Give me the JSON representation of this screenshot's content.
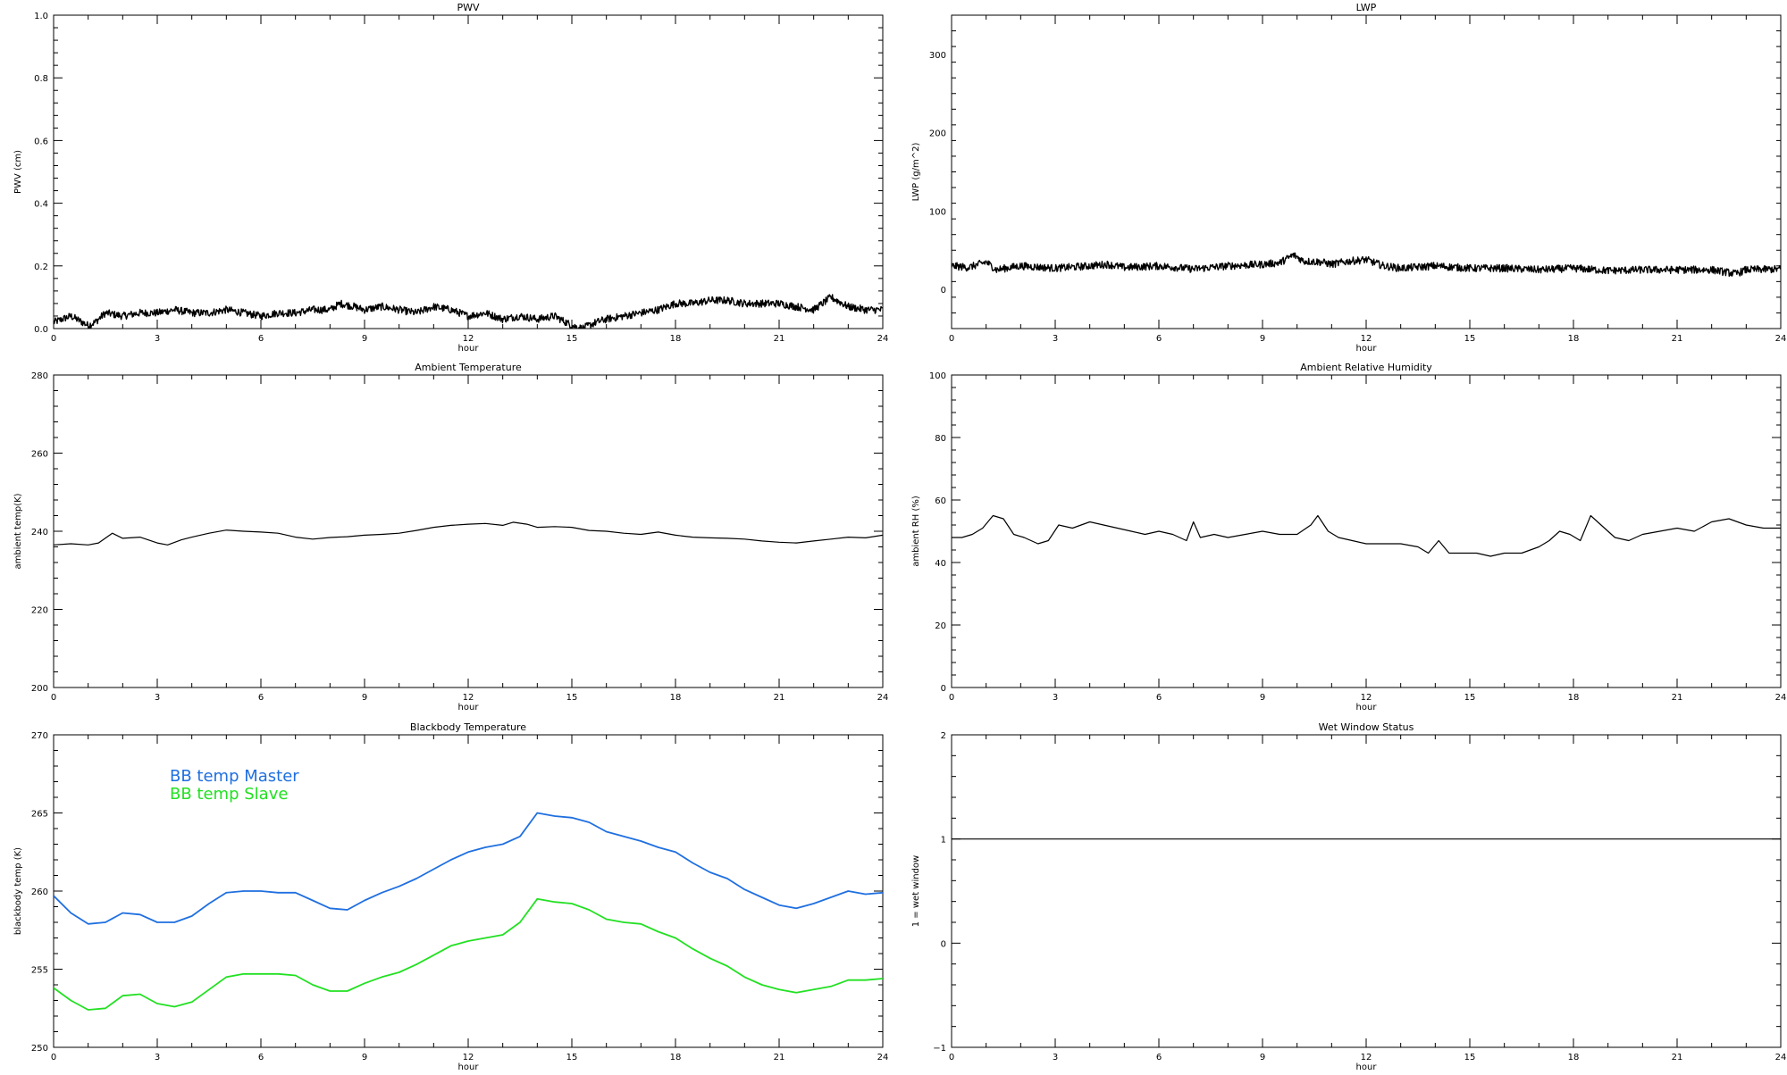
{
  "chart_data": [
    {
      "type": "line",
      "title": "PWV",
      "xlabel": "hour",
      "ylabel": "PWV (cm)",
      "xlim": [
        0,
        24
      ],
      "ylim": [
        0.0,
        1.0
      ],
      "x_ticks": [
        "0",
        "3",
        "6",
        "9",
        "12",
        "15",
        "18",
        "21",
        "24"
      ],
      "y_ticks": [
        "0.0",
        "0.2",
        "0.4",
        "0.6",
        "0.8",
        "1.0"
      ],
      "y_tick_values": [
        0,
        0.2,
        0.4,
        0.6,
        0.8,
        1.0
      ],
      "grid": false,
      "noisy": true,
      "series": [
        {
          "color": "#000000",
          "x": [
            0,
            0.5,
            1,
            1.2,
            1.5,
            2,
            2.5,
            3,
            3.5,
            4,
            4.5,
            5,
            5.5,
            6,
            6.5,
            7,
            7.5,
            8,
            8.3,
            8.7,
            9,
            9.5,
            10,
            10.5,
            11,
            11.5,
            12,
            12.5,
            13,
            13.5,
            14,
            14.5,
            15,
            15.3,
            15.7,
            16,
            16.5,
            17,
            17.5,
            18,
            18.5,
            19,
            19.5,
            20,
            20.5,
            21,
            21.5,
            22,
            22.5,
            23,
            23.5,
            24
          ],
          "y": [
            0.02,
            0.04,
            0.01,
            0.02,
            0.05,
            0.04,
            0.05,
            0.05,
            0.06,
            0.05,
            0.05,
            0.06,
            0.05,
            0.04,
            0.05,
            0.05,
            0.06,
            0.06,
            0.08,
            0.07,
            0.06,
            0.07,
            0.06,
            0.05,
            0.07,
            0.06,
            0.04,
            0.05,
            0.03,
            0.04,
            0.03,
            0.04,
            0.01,
            0.0,
            0.02,
            0.03,
            0.04,
            0.05,
            0.06,
            0.08,
            0.08,
            0.09,
            0.09,
            0.08,
            0.08,
            0.08,
            0.07,
            0.06,
            0.1,
            0.07,
            0.06,
            0.06
          ]
        }
      ]
    },
    {
      "type": "line",
      "title": "LWP",
      "xlabel": "hour",
      "ylabel": "LWP (g/m^2)",
      "xlim": [
        0,
        24
      ],
      "ylim": [
        -50,
        350
      ],
      "x_ticks": [
        "0",
        "3",
        "6",
        "9",
        "12",
        "15",
        "18",
        "21",
        "24"
      ],
      "y_ticks": [
        "0",
        "100",
        "200",
        "300"
      ],
      "y_tick_values": [
        0,
        100,
        200,
        300
      ],
      "grid": false,
      "noisy": true,
      "series": [
        {
          "color": "#000000",
          "x": [
            0,
            0.5,
            1,
            1.3,
            1.7,
            2,
            3,
            4,
            4.5,
            5,
            6,
            7,
            8,
            9,
            9.5,
            9.9,
            10.2,
            10.7,
            11,
            11.5,
            12,
            12.5,
            13,
            14,
            15,
            16,
            17,
            18,
            19,
            20,
            21,
            22,
            22.7,
            23,
            24
          ],
          "y": [
            30,
            28,
            35,
            25,
            28,
            30,
            27,
            30,
            32,
            28,
            30,
            26,
            30,
            32,
            34,
            44,
            36,
            35,
            32,
            36,
            38,
            30,
            27,
            30,
            27,
            27,
            25,
            27,
            24,
            25,
            25,
            25,
            20,
            25,
            26
          ]
        }
      ]
    },
    {
      "type": "line",
      "title": "Ambient Temperature",
      "xlabel": "hour",
      "ylabel": "ambient temp(K)",
      "xlim": [
        0,
        24
      ],
      "ylim": [
        200,
        280
      ],
      "x_ticks": [
        "0",
        "3",
        "6",
        "9",
        "12",
        "15",
        "18",
        "21",
        "24"
      ],
      "y_ticks": [
        "200",
        "220",
        "240",
        "260",
        "280"
      ],
      "y_tick_values": [
        200,
        220,
        240,
        260,
        280
      ],
      "grid": false,
      "noisy": false,
      "series": [
        {
          "color": "#000000",
          "x": [
            0,
            0.5,
            1,
            1.3,
            1.7,
            2,
            2.5,
            3,
            3.3,
            3.7,
            4,
            4.5,
            5,
            5.5,
            6,
            6.5,
            7,
            7.5,
            8,
            8.5,
            9,
            9.5,
            10,
            10.5,
            11,
            11.5,
            12,
            12.5,
            13,
            13.3,
            13.7,
            14,
            14.5,
            15,
            15.5,
            16,
            16.5,
            17,
            17.5,
            18,
            18.5,
            19,
            19.5,
            20,
            20.5,
            21,
            21.5,
            22,
            22.5,
            23,
            23.5,
            24
          ],
          "y": [
            236.5,
            236.8,
            236.5,
            237,
            239.5,
            238.2,
            238.5,
            237,
            236.5,
            237.8,
            238.5,
            239.5,
            240.3,
            240,
            239.8,
            239.5,
            238.5,
            238,
            238.4,
            238.6,
            239,
            239.2,
            239.5,
            240.2,
            241,
            241.5,
            241.8,
            242,
            241.5,
            242.3,
            241.8,
            241,
            241.2,
            241,
            240.2,
            240,
            239.5,
            239.2,
            239.8,
            239,
            238.5,
            238.3,
            238.2,
            238,
            237.5,
            237.2,
            237,
            237.5,
            238,
            238.5,
            238.3,
            239
          ]
        }
      ]
    },
    {
      "type": "line",
      "title": "Ambient Relative Humidity",
      "xlabel": "hour",
      "ylabel": "ambient RH (%)",
      "xlim": [
        0,
        24
      ],
      "ylim": [
        0,
        100
      ],
      "x_ticks": [
        "0",
        "3",
        "6",
        "9",
        "12",
        "15",
        "18",
        "21",
        "24"
      ],
      "y_ticks": [
        "0",
        "20",
        "40",
        "60",
        "80",
        "100"
      ],
      "y_tick_values": [
        0,
        20,
        40,
        60,
        80,
        100
      ],
      "grid": false,
      "noisy": false,
      "series": [
        {
          "color": "#000000",
          "x": [
            0,
            0.3,
            0.6,
            0.9,
            1.2,
            1.5,
            1.8,
            2.1,
            2.5,
            2.8,
            3.1,
            3.5,
            4,
            4.4,
            4.8,
            5.2,
            5.6,
            6,
            6.4,
            6.8,
            7,
            7.2,
            7.6,
            8,
            8.5,
            9,
            9.5,
            10,
            10.4,
            10.6,
            10.9,
            11.2,
            11.6,
            12,
            12.5,
            13,
            13.5,
            13.8,
            14.1,
            14.4,
            14.8,
            15.2,
            15.6,
            16,
            16.5,
            17,
            17.3,
            17.6,
            17.9,
            18.2,
            18.5,
            18.8,
            19.2,
            19.6,
            20,
            20.5,
            21,
            21.5,
            22,
            22.5,
            23,
            23.5,
            24
          ],
          "y": [
            48,
            48,
            49,
            51,
            55,
            54,
            49,
            48,
            46,
            47,
            52,
            51,
            53,
            52,
            51,
            50,
            49,
            50,
            49,
            47,
            53,
            48,
            49,
            48,
            49,
            50,
            49,
            49,
            52,
            55,
            50,
            48,
            47,
            46,
            46,
            46,
            45,
            43,
            47,
            43,
            43,
            43,
            42,
            43,
            43,
            45,
            47,
            50,
            49,
            47,
            55,
            52,
            48,
            47,
            49,
            50,
            51,
            50,
            53,
            54,
            52,
            51,
            51
          ]
        }
      ]
    },
    {
      "type": "line",
      "title": "Blackbody Temperature",
      "xlabel": "hour",
      "ylabel": "blackbody temp (K)",
      "xlim": [
        0,
        24
      ],
      "ylim": [
        250,
        270
      ],
      "x_ticks": [
        "0",
        "3",
        "6",
        "9",
        "12",
        "15",
        "18",
        "21",
        "24"
      ],
      "y_ticks": [
        "250",
        "255",
        "260",
        "265",
        "270"
      ],
      "y_tick_values": [
        250,
        255,
        260,
        265,
        270
      ],
      "grid": false,
      "noisy": false,
      "legend_position": "top-left",
      "series": [
        {
          "name": "BB temp Master",
          "color": "#1f6fe0",
          "x": [
            0,
            0.5,
            1,
            1.5,
            2,
            2.5,
            3,
            3.5,
            4,
            4.5,
            5,
            5.5,
            6,
            6.5,
            7,
            7.5,
            8,
            8.5,
            9,
            9.5,
            10,
            10.5,
            11,
            11.5,
            12,
            12.5,
            13,
            13.5,
            14,
            14.5,
            15,
            15.5,
            16,
            16.5,
            17,
            17.5,
            18,
            18.5,
            19,
            19.5,
            20,
            20.5,
            21,
            21.5,
            22,
            22.5,
            23,
            23.5,
            24
          ],
          "y": [
            259.7,
            258.6,
            257.9,
            258,
            258.6,
            258.5,
            258,
            258,
            258.4,
            259.2,
            259.9,
            260,
            260,
            259.9,
            259.9,
            259.4,
            258.9,
            258.8,
            259.4,
            259.9,
            260.3,
            260.8,
            261.4,
            262,
            262.5,
            262.8,
            263,
            263.5,
            265,
            264.8,
            264.7,
            264.4,
            263.8,
            263.5,
            263.2,
            262.8,
            262.5,
            261.8,
            261.2,
            260.8,
            260.1,
            259.6,
            259.1,
            258.9,
            259.2,
            259.6,
            260,
            259.8,
            259.9
          ]
        },
        {
          "name": "BB temp Slave",
          "color": "#22e022",
          "x": [
            0,
            0.5,
            1,
            1.5,
            2,
            2.5,
            3,
            3.5,
            4,
            4.5,
            5,
            5.5,
            6,
            6.5,
            7,
            7.5,
            8,
            8.5,
            9,
            9.5,
            10,
            10.5,
            11,
            11.5,
            12,
            12.5,
            13,
            13.5,
            14,
            14.5,
            15,
            15.5,
            16,
            16.5,
            17,
            17.5,
            18,
            18.5,
            19,
            19.5,
            20,
            20.5,
            21,
            21.5,
            22,
            22.5,
            23,
            23.5,
            24
          ],
          "y": [
            253.8,
            253,
            252.4,
            252.5,
            253.3,
            253.4,
            252.8,
            252.6,
            252.9,
            253.7,
            254.5,
            254.7,
            254.7,
            254.7,
            254.6,
            254,
            253.6,
            253.6,
            254.1,
            254.5,
            254.8,
            255.3,
            255.9,
            256.5,
            256.8,
            257,
            257.2,
            258,
            259.5,
            259.3,
            259.2,
            258.8,
            258.2,
            258,
            257.9,
            257.4,
            257,
            256.3,
            255.7,
            255.2,
            254.5,
            254,
            253.7,
            253.5,
            253.7,
            253.9,
            254.3,
            254.3,
            254.4
          ]
        }
      ]
    },
    {
      "type": "line",
      "title": "Wet Window Status",
      "xlabel": "hour",
      "ylabel": "1 = wet window",
      "xlim": [
        0,
        24
      ],
      "ylim": [
        -1,
        2
      ],
      "x_ticks": [
        "0",
        "3",
        "6",
        "9",
        "12",
        "15",
        "18",
        "21",
        "24"
      ],
      "y_ticks": [
        "−1",
        "0",
        "1",
        "2"
      ],
      "y_tick_values": [
        -1,
        0,
        1,
        2
      ],
      "grid": false,
      "noisy": false,
      "series": [
        {
          "color": "#000000",
          "x": [
            0,
            24
          ],
          "y": [
            1,
            1
          ]
        }
      ]
    }
  ]
}
